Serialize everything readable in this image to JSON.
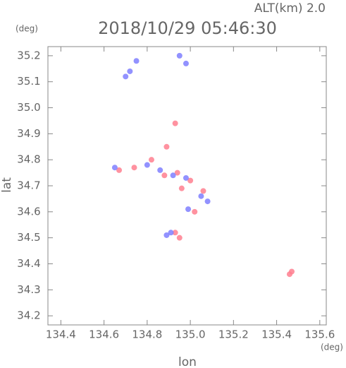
{
  "chart_data": {
    "type": "scatter",
    "title": "2018/10/29 05:46:30",
    "subtitle": "ALT(km) 2.0",
    "x_label": "lon",
    "y_label": "lat",
    "x_unit": "(deg)",
    "y_unit": "(deg)",
    "xlim": [
      134.34,
      135.63
    ],
    "ylim": [
      34.165,
      35.235
    ],
    "xticks": [
      134.4,
      134.6,
      134.8,
      {
        "value": 135,
        "label": "135.0"
      },
      135.2,
      135.4,
      135.6
    ],
    "yticks": [
      34.2,
      34.3,
      34.4,
      34.5,
      34.6,
      34.7,
      34.8,
      34.9,
      {
        "value": 35,
        "label": "35.0"
      },
      35.1,
      35.2
    ],
    "series": [
      {
        "color": "#ff7f8f",
        "x": [
          134.89,
          134.93,
          134.67,
          134.74,
          134.82,
          134.88,
          134.94,
          135.0,
          134.96,
          135.06,
          135.02,
          134.93,
          134.95,
          135.47,
          135.46
        ],
        "values": [
          34.85,
          34.94,
          34.76,
          34.77,
          34.8,
          34.74,
          34.75,
          34.72,
          34.69,
          34.68,
          34.6,
          34.52,
          34.5,
          34.37,
          34.36
        ]
      },
      {
        "color": "#7f7fff",
        "x": [
          134.72,
          134.75,
          134.7,
          134.95,
          134.98,
          134.65,
          134.8,
          134.86,
          134.92,
          134.98,
          135.05,
          135.08,
          134.99,
          134.91,
          134.89
        ],
        "values": [
          35.14,
          35.18,
          35.12,
          35.2,
          35.17,
          34.77,
          34.78,
          34.76,
          34.74,
          34.73,
          34.66,
          34.64,
          34.61,
          34.52,
          34.51
        ]
      }
    ]
  }
}
